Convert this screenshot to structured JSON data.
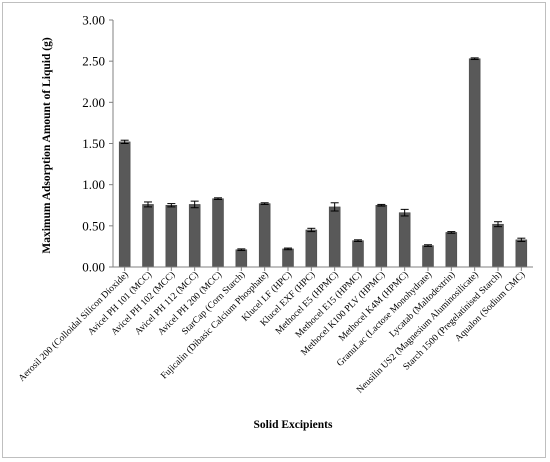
{
  "chart_data": {
    "type": "bar",
    "title": "",
    "xlabel": "Solid Excipients",
    "ylabel": "Maximum Adsorption Amount of Liquid (g)",
    "ylim": [
      0,
      3
    ],
    "yticks": [
      "0.00",
      "0.50",
      "1.00",
      "1.50",
      "2.00",
      "2.50",
      "3.00"
    ],
    "grid": false,
    "legend": "none",
    "bar_color": "#595959",
    "categories": [
      "Aerosil 200 (Colloidal Silicon Dioxide)",
      "Avicel PH 101 (MCC)",
      "Avicel PH 102 (MCC)",
      "Avicel PH 112 (MCC)",
      "Avicel PH 200 (MCC)",
      "StarCap (Corn Starch)",
      "Fujicalin (Dibasic Calcium Phosphate)",
      "Klucel LF (HPC)",
      "Klucel EXF (HPC)",
      "Methocel E5 (HPMC)",
      "Methocel E15 (HPMC)",
      "Methocel K100 PLV (HPMC)",
      "Methocel K4M (HPMC)",
      "GranuLac (Lactose Monohydrate)",
      "Lycatab (Maltodextrin)",
      "Neusilin US2 (Magnesium Aluminosilicate)",
      "Starch 1500 (Pregelatinised Starch)",
      "Aqualon (Sodium CMC)"
    ],
    "values": [
      1.52,
      0.76,
      0.75,
      0.76,
      0.83,
      0.21,
      0.77,
      0.22,
      0.45,
      0.73,
      0.32,
      0.75,
      0.66,
      0.26,
      0.42,
      2.53,
      0.52,
      0.33
    ],
    "errors": [
      0.02,
      0.03,
      0.02,
      0.04,
      0.01,
      0.01,
      0.01,
      0.01,
      0.02,
      0.05,
      0.01,
      0.01,
      0.04,
      0.01,
      0.01,
      0.01,
      0.03,
      0.02
    ]
  }
}
